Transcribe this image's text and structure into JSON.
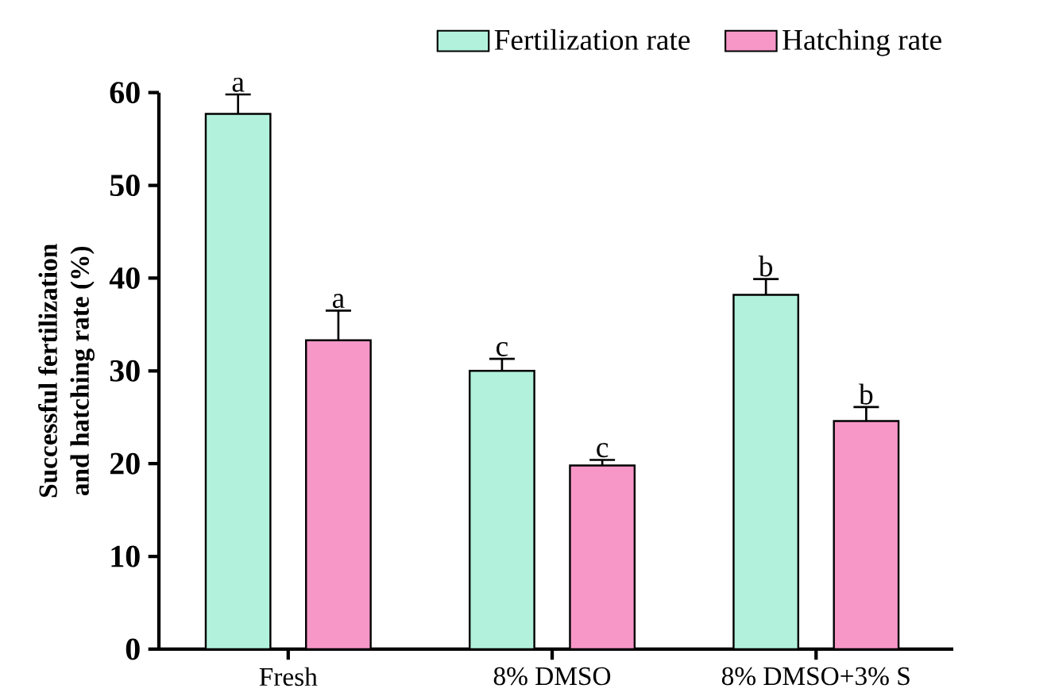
{
  "chart_data": {
    "type": "bar",
    "ylabel": "Successful fertilization\nand hatching rate (%)",
    "categories": [
      "Fresh",
      "8% DMSO",
      "8% DMSO+3% S"
    ],
    "series": [
      {
        "name": "Fertilization rate",
        "color": "#b2f2dc",
        "values": [
          57.7,
          30.0,
          38.2
        ],
        "errors": [
          2.1,
          1.3,
          1.7
        ],
        "value_labels": [
          "a",
          "c",
          "b"
        ]
      },
      {
        "name": "Hatching rate",
        "color": "#f797c8",
        "values": [
          33.3,
          19.8,
          24.6
        ],
        "errors": [
          3.2,
          0.6,
          1.5
        ],
        "value_labels": [
          "a",
          "c",
          "b"
        ]
      }
    ],
    "ylim": [
      0,
      60
    ],
    "yticks": [
      0,
      10,
      20,
      30,
      40,
      50,
      60
    ],
    "legend": "top right"
  }
}
